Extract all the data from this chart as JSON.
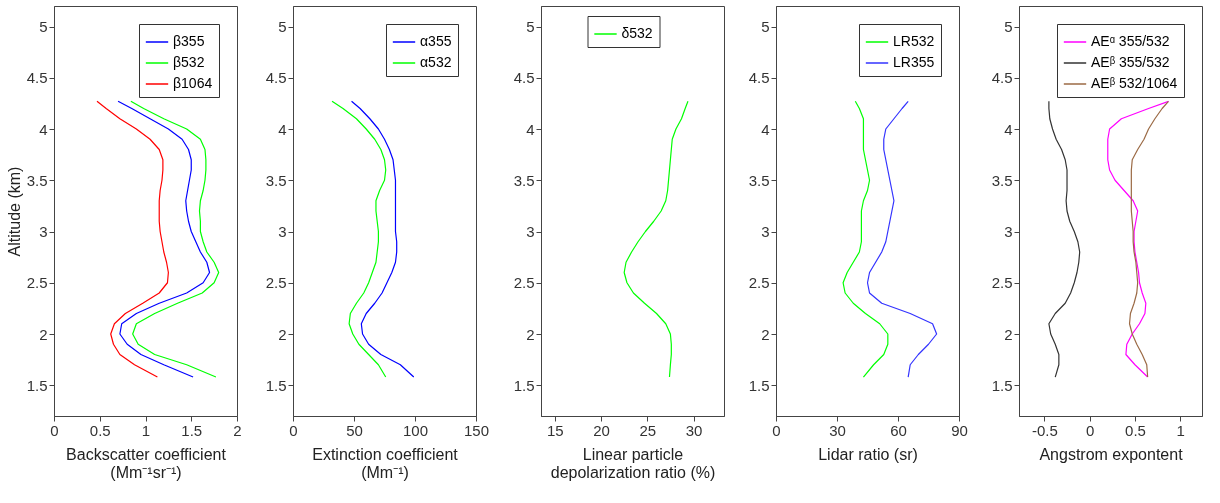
{
  "chart_data": [
    {
      "type": "line",
      "xlabel": "Backscatter coefficient\n(Mm⁻¹sr⁻¹)",
      "ylabel": "Altitude (km)",
      "xlim": [
        0,
        2
      ],
      "xticks": [
        0,
        0.5,
        1,
        1.5,
        2
      ],
      "ylim": [
        1.2,
        5.2
      ],
      "yticks": [
        1.5,
        2,
        2.5,
        3,
        3.5,
        4,
        4.5,
        5
      ],
      "legend": "top right",
      "grid": false,
      "series": [
        {
          "name": "β355",
          "color": "#0000ff",
          "x": [
            1.52,
            1.2,
            0.95,
            0.8,
            0.72,
            0.74,
            0.9,
            1.15,
            1.45,
            1.63,
            1.7,
            1.67,
            1.6,
            1.55,
            1.5,
            1.47,
            1.45,
            1.44,
            1.46,
            1.48,
            1.5,
            1.5,
            1.47,
            1.4,
            1.25,
            1.05,
            0.85,
            0.7
          ],
          "values": [
            1.58,
            1.7,
            1.8,
            1.9,
            2.0,
            2.1,
            2.2,
            2.3,
            2.4,
            2.5,
            2.6,
            2.7,
            2.8,
            2.9,
            3.0,
            3.1,
            3.2,
            3.3,
            3.4,
            3.5,
            3.6,
            3.7,
            3.8,
            3.9,
            4.0,
            4.1,
            4.2,
            4.27
          ]
        },
        {
          "name": "β532",
          "color": "#00ff00",
          "x": [
            1.77,
            1.45,
            1.1,
            0.92,
            0.86,
            0.9,
            1.1,
            1.35,
            1.62,
            1.75,
            1.8,
            1.75,
            1.67,
            1.63,
            1.6,
            1.6,
            1.59,
            1.6,
            1.63,
            1.65,
            1.66,
            1.66,
            1.65,
            1.6,
            1.45,
            1.2,
            0.98,
            0.84
          ],
          "values": [
            1.58,
            1.7,
            1.8,
            1.9,
            2.0,
            2.1,
            2.2,
            2.3,
            2.4,
            2.5,
            2.6,
            2.7,
            2.8,
            2.9,
            3.0,
            3.1,
            3.2,
            3.3,
            3.4,
            3.5,
            3.6,
            3.7,
            3.8,
            3.9,
            4.0,
            4.1,
            4.2,
            4.27
          ]
        },
        {
          "name": "β1064",
          "color": "#ff0000",
          "x": [
            1.13,
            0.88,
            0.72,
            0.65,
            0.62,
            0.66,
            0.78,
            0.97,
            1.15,
            1.24,
            1.25,
            1.23,
            1.2,
            1.18,
            1.16,
            1.15,
            1.15,
            1.15,
            1.16,
            1.18,
            1.19,
            1.19,
            1.15,
            1.05,
            0.9,
            0.72,
            0.57,
            0.47
          ],
          "values": [
            1.58,
            1.7,
            1.8,
            1.9,
            2.0,
            2.1,
            2.2,
            2.3,
            2.4,
            2.5,
            2.6,
            2.7,
            2.8,
            2.9,
            3.0,
            3.1,
            3.2,
            3.3,
            3.4,
            3.5,
            3.6,
            3.7,
            3.8,
            3.9,
            4.0,
            4.1,
            4.2,
            4.27
          ]
        }
      ]
    },
    {
      "type": "line",
      "xlabel": "Extinction coefficient\n(Mm⁻¹)",
      "xlim": [
        0,
        150
      ],
      "xticks": [
        0,
        50,
        100,
        150
      ],
      "ylim": [
        1.2,
        5.2
      ],
      "yticks": [
        1.5,
        2,
        2.5,
        3,
        3.5,
        4,
        4.5,
        5
      ],
      "legend": "top right",
      "grid": false,
      "series": [
        {
          "name": "α355",
          "color": "#0000ff",
          "x": [
            99,
            88,
            72,
            62,
            57,
            56,
            60,
            67,
            73,
            77,
            81,
            84,
            85,
            85,
            84,
            84,
            84,
            84,
            84,
            84,
            83,
            82,
            79,
            75,
            70,
            63,
            55,
            48
          ],
          "values": [
            1.58,
            1.7,
            1.8,
            1.9,
            2.0,
            2.1,
            2.2,
            2.3,
            2.4,
            2.5,
            2.6,
            2.7,
            2.8,
            2.9,
            3.0,
            3.1,
            3.2,
            3.3,
            3.4,
            3.5,
            3.6,
            3.7,
            3.8,
            3.9,
            4.0,
            4.1,
            4.2,
            4.27
          ]
        },
        {
          "name": "α532",
          "color": "#00ff00",
          "x": [
            76,
            70,
            62,
            54,
            49,
            46,
            47,
            52,
            58,
            62,
            65,
            68,
            69,
            70,
            70,
            69,
            68,
            68,
            71,
            75,
            76,
            75,
            72,
            67,
            60,
            52,
            41,
            32
          ],
          "values": [
            1.58,
            1.7,
            1.8,
            1.9,
            2.0,
            2.1,
            2.2,
            2.3,
            2.4,
            2.5,
            2.6,
            2.7,
            2.8,
            2.9,
            3.0,
            3.1,
            3.2,
            3.3,
            3.4,
            3.5,
            3.6,
            3.7,
            3.8,
            3.9,
            4.0,
            4.1,
            4.2,
            4.27
          ]
        }
      ]
    },
    {
      "type": "line",
      "xlabel": "Linear particle\ndepolarization ratio (%)",
      "xlim": [
        13.5,
        33.3
      ],
      "xticks": [
        15,
        20,
        25,
        30
      ],
      "ylim": [
        1.2,
        5.2
      ],
      "yticks": [
        1.5,
        2,
        2.5,
        3,
        3.5,
        4,
        4.5,
        5
      ],
      "legend": "top",
      "grid": false,
      "series": [
        {
          "name": "δ532",
          "color": "#00ff00",
          "x": [
            27.4,
            27.5,
            27.6,
            27.6,
            27.5,
            27.0,
            26.0,
            24.7,
            23.5,
            22.8,
            22.5,
            22.7,
            23.3,
            24.0,
            24.8,
            25.7,
            26.5,
            27.0,
            27.2,
            27.3,
            27.4,
            27.5,
            27.6,
            27.7,
            28.1,
            28.7,
            29.1,
            29.4
          ],
          "values": [
            1.58,
            1.7,
            1.8,
            1.9,
            2.0,
            2.1,
            2.2,
            2.3,
            2.4,
            2.5,
            2.6,
            2.7,
            2.8,
            2.9,
            3.0,
            3.1,
            3.2,
            3.3,
            3.4,
            3.5,
            3.6,
            3.7,
            3.8,
            3.9,
            4.0,
            4.1,
            4.2,
            4.27
          ]
        }
      ]
    },
    {
      "type": "line",
      "xlabel": "Lidar ratio (sr)",
      "xlim": [
        0,
        90
      ],
      "xticks": [
        0,
        30,
        60,
        90
      ],
      "ylim": [
        1.2,
        5.2
      ],
      "yticks": [
        1.5,
        2,
        2.5,
        3,
        3.5,
        4,
        4.5,
        5
      ],
      "legend": "top right",
      "grid": false,
      "series": [
        {
          "name": "LR532",
          "color": "#00ff00",
          "x": [
            43,
            48,
            53,
            55,
            55,
            51,
            44,
            38,
            34,
            33,
            35,
            38,
            41,
            42,
            42,
            42,
            42,
            43,
            45,
            46,
            45,
            44,
            43,
            43,
            43,
            43,
            41,
            39
          ],
          "values": [
            1.58,
            1.7,
            1.8,
            1.9,
            2.0,
            2.1,
            2.2,
            2.3,
            2.4,
            2.5,
            2.6,
            2.7,
            2.8,
            2.9,
            3.0,
            3.1,
            3.2,
            3.3,
            3.4,
            3.5,
            3.6,
            3.7,
            3.8,
            3.9,
            4.0,
            4.1,
            4.2,
            4.27
          ]
        },
        {
          "name": "LR355",
          "color": "#3333ff",
          "x": [
            65,
            66,
            70,
            75,
            79,
            77,
            66,
            52,
            46,
            45,
            46,
            49,
            52,
            54,
            55,
            56,
            57,
            58,
            57,
            56,
            55,
            54,
            53,
            53,
            54,
            58,
            62,
            65
          ],
          "values": [
            1.58,
            1.7,
            1.8,
            1.9,
            2.0,
            2.1,
            2.2,
            2.3,
            2.4,
            2.5,
            2.6,
            2.7,
            2.8,
            2.9,
            3.0,
            3.1,
            3.2,
            3.3,
            3.4,
            3.5,
            3.6,
            3.7,
            3.8,
            3.9,
            4.0,
            4.1,
            4.2,
            4.27
          ]
        }
      ]
    },
    {
      "type": "line",
      "xlabel": "Angstrom expontent",
      "xlim": [
        -0.78,
        1.24
      ],
      "xticks": [
        -0.5,
        0,
        0.5,
        1
      ],
      "ylim": [
        1.2,
        5.2
      ],
      "yticks": [
        1.5,
        2,
        2.5,
        3,
        3.5,
        4,
        4.5,
        5
      ],
      "legend": "top right",
      "grid": false,
      "series": [
        {
          "name": "AEᵅ 355/532",
          "color": "#ff00ff",
          "x": [
            0.64,
            0.5,
            0.4,
            0.41,
            0.47,
            0.55,
            0.61,
            0.62,
            0.58,
            0.55,
            0.54,
            0.52,
            0.5,
            0.49,
            0.49,
            0.51,
            0.53,
            0.48,
            0.38,
            0.28,
            0.22,
            0.2,
            0.2,
            0.2,
            0.22,
            0.35,
            0.65,
            0.87
          ],
          "values": [
            1.58,
            1.7,
            1.8,
            1.9,
            2.0,
            2.1,
            2.2,
            2.3,
            2.4,
            2.5,
            2.6,
            2.7,
            2.8,
            2.9,
            3.0,
            3.1,
            3.2,
            3.3,
            3.4,
            3.5,
            3.6,
            3.7,
            3.8,
            3.9,
            4.0,
            4.1,
            4.2,
            4.27
          ]
        },
        {
          "name": "AEᵝ 355/532",
          "color": "#333333",
          "x": [
            -0.38,
            -0.34,
            -0.34,
            -0.38,
            -0.43,
            -0.45,
            -0.38,
            -0.27,
            -0.21,
            -0.17,
            -0.14,
            -0.12,
            -0.11,
            -0.13,
            -0.17,
            -0.22,
            -0.25,
            -0.26,
            -0.25,
            -0.25,
            -0.25,
            -0.27,
            -0.31,
            -0.37,
            -0.41,
            -0.44,
            -0.45,
            -0.45
          ],
          "values": [
            1.58,
            1.7,
            1.8,
            1.9,
            2.0,
            2.1,
            2.2,
            2.3,
            2.4,
            2.5,
            2.6,
            2.7,
            2.8,
            2.9,
            3.0,
            3.1,
            3.2,
            3.3,
            3.4,
            3.5,
            3.6,
            3.7,
            3.8,
            3.9,
            4.0,
            4.1,
            4.2,
            4.27
          ]
        },
        {
          "name": "AEᵝ 532/1064",
          "color": "#9b6a45",
          "x": [
            0.64,
            0.63,
            0.58,
            0.52,
            0.47,
            0.44,
            0.45,
            0.49,
            0.52,
            0.53,
            0.52,
            0.51,
            0.49,
            0.48,
            0.48,
            0.47,
            0.46,
            0.46,
            0.46,
            0.46,
            0.46,
            0.47,
            0.53,
            0.6,
            0.65,
            0.72,
            0.8,
            0.87
          ],
          "values": [
            1.58,
            1.7,
            1.8,
            1.9,
            2.0,
            2.1,
            2.2,
            2.3,
            2.4,
            2.5,
            2.6,
            2.7,
            2.8,
            2.9,
            3.0,
            3.1,
            3.2,
            3.3,
            3.4,
            3.5,
            3.6,
            3.7,
            3.8,
            3.9,
            4.0,
            4.1,
            4.2,
            4.27
          ]
        }
      ]
    }
  ]
}
